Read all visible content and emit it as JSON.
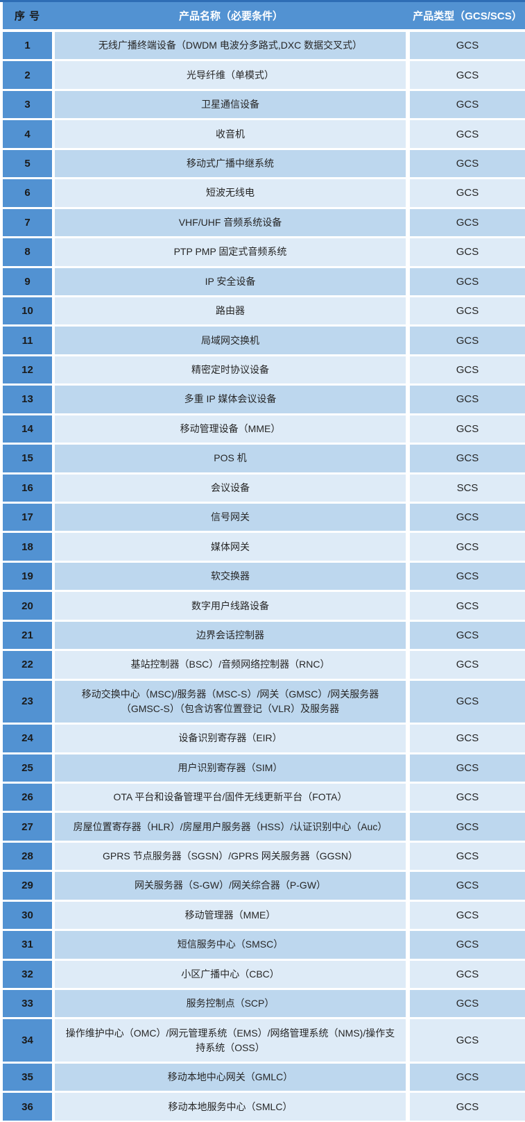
{
  "colors": {
    "header_blue": "#5292D2",
    "row_odd_blue": "#BDD7EE",
    "row_even_blue": "#DEEBF7",
    "top_border_blue": "#2E6DB5",
    "header_text": "#FFFFFF",
    "dark_text": "#1A1A1A",
    "body_text": "#262626"
  },
  "table": {
    "headers": {
      "no": "序 号",
      "name": "产品名称（必要条件）",
      "type": "产品类型（GCS/SCS）"
    },
    "rows": [
      {
        "no": "1",
        "name": "无线广播终端设备（DWDM 电波分多路式,DXC 数据交叉式）",
        "type": "GCS"
      },
      {
        "no": "2",
        "name": "光导纤维（单模式）",
        "type": "GCS"
      },
      {
        "no": "3",
        "name": "卫星通信设备",
        "type": "GCS"
      },
      {
        "no": "4",
        "name": "收音机",
        "type": "GCS"
      },
      {
        "no": "5",
        "name": "移动式广播中继系统",
        "type": "GCS"
      },
      {
        "no": "6",
        "name": "短波无线电",
        "type": "GCS"
      },
      {
        "no": "7",
        "name": "VHF/UHF 音频系统设备",
        "type": "GCS"
      },
      {
        "no": "8",
        "name": "PTP PMP 固定式音频系统",
        "type": "GCS"
      },
      {
        "no": "9",
        "name": "IP 安全设备",
        "type": "GCS"
      },
      {
        "no": "10",
        "name": "路由器",
        "type": "GCS"
      },
      {
        "no": "11",
        "name": "局域网交换机",
        "type": "GCS"
      },
      {
        "no": "12",
        "name": "精密定时协议设备",
        "type": "GCS"
      },
      {
        "no": "13",
        "name": "多重 IP 媒体会议设备",
        "type": "GCS"
      },
      {
        "no": "14",
        "name": "移动管理设备（MME）",
        "type": "GCS"
      },
      {
        "no": "15",
        "name": "POS 机",
        "type": "GCS"
      },
      {
        "no": "16",
        "name": "会议设备",
        "type": "SCS"
      },
      {
        "no": "17",
        "name": "信号网关",
        "type": "GCS"
      },
      {
        "no": "18",
        "name": "媒体网关",
        "type": "GCS"
      },
      {
        "no": "19",
        "name": "软交换器",
        "type": "GCS"
      },
      {
        "no": "20",
        "name": "数字用户线路设备",
        "type": "GCS"
      },
      {
        "no": "21",
        "name": "边界会话控制器",
        "type": "GCS"
      },
      {
        "no": "22",
        "name": "基站控制器（BSC）/音频网络控制器（RNC）",
        "type": "GCS"
      },
      {
        "no": "23",
        "name": "移动交换中心（MSC)/服务器（MSC-S）/网关（GMSC）/网关服务器（GMSC-S）（包含访客位置登记（VLR）及服务器",
        "type": "GCS"
      },
      {
        "no": "24",
        "name": "设备识别寄存器（EIR）",
        "type": "GCS"
      },
      {
        "no": "25",
        "name": "用户识别寄存器（SIM）",
        "type": "GCS"
      },
      {
        "no": "26",
        "name": "OTA 平台和设备管理平台/固件无线更新平台（FOTA）",
        "type": "GCS"
      },
      {
        "no": "27",
        "name": "房屋位置寄存器（HLR）/房屋用户服务器（HSS）/认证识别中心（Auc）",
        "type": "GCS"
      },
      {
        "no": "28",
        "name": "GPRS 节点服务器（SGSN）/GPRS 网关服务器（GGSN）",
        "type": "GCS"
      },
      {
        "no": "29",
        "name": "网关服务器（S-GW）/网关综合器（P-GW）",
        "type": "GCS"
      },
      {
        "no": "30",
        "name": "移动管理器（MME）",
        "type": "GCS"
      },
      {
        "no": "31",
        "name": "短信服务中心（SMSC）",
        "type": "GCS"
      },
      {
        "no": "32",
        "name": "小区广播中心（CBC）",
        "type": "GCS"
      },
      {
        "no": "33",
        "name": "服务控制点（SCP）",
        "type": "GCS"
      },
      {
        "no": "34",
        "name": "操作维护中心（OMC）/网元管理系统（EMS）/网络管理系统（NMS)/操作支持系统（OSS）",
        "type": "GCS"
      },
      {
        "no": "35",
        "name": "移动本地中心网关（GMLC）",
        "type": "GCS"
      },
      {
        "no": "36",
        "name": "移动本地服务中心（SMLC）",
        "type": "GCS"
      }
    ]
  }
}
